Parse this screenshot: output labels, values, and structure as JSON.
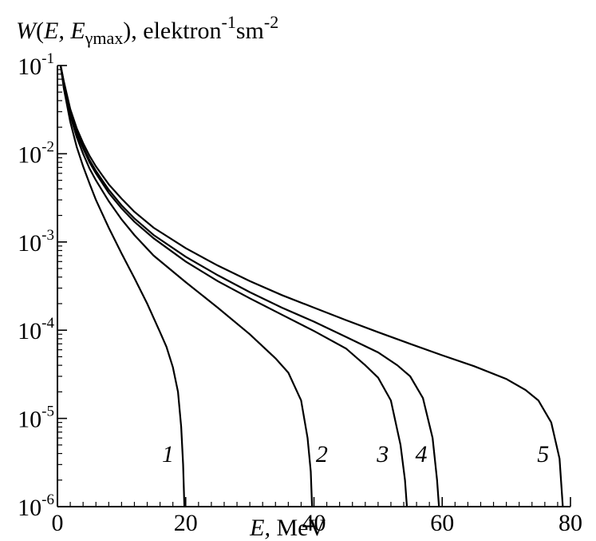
{
  "chart_data": {
    "type": "line",
    "title": "",
    "ylabel": {
      "parts": [
        {
          "text": "W",
          "style": "italic"
        },
        {
          "text": "(",
          "style": "normal"
        },
        {
          "text": "E,",
          "style": "italic"
        },
        {
          "text": " E",
          "style": "italic"
        },
        {
          "text": "γmax",
          "style": "sub"
        },
        {
          "text": "), elektron",
          "style": "normal"
        },
        {
          "text": "-1",
          "style": "sup"
        },
        {
          "text": "sm",
          "style": "normal"
        },
        {
          "text": "-2",
          "style": "sup"
        }
      ]
    },
    "xlabel": {
      "parts": [
        {
          "text": "E,",
          "style": "italic"
        },
        {
          "text": " MeV",
          "style": "normal"
        }
      ]
    },
    "xlim": [
      0,
      80
    ],
    "ylim": [
      1e-06,
      0.1
    ],
    "yscale": "log",
    "x_ticks": [
      0,
      20,
      40,
      60,
      80
    ],
    "x_tick_labels": [
      "0",
      "20",
      "40",
      "60",
      "80"
    ],
    "x_minor_step": 2,
    "y_ticks": [
      1e-06,
      1e-05,
      0.0001,
      0.001,
      0.01,
      0.1
    ],
    "y_tick_labels": [
      {
        "base": "10",
        "exp": "-6"
      },
      {
        "base": "10",
        "exp": "-5"
      },
      {
        "base": "10",
        "exp": "-4"
      },
      {
        "base": "10",
        "exp": "-3"
      },
      {
        "base": "10",
        "exp": "-2"
      },
      {
        "base": "10",
        "exp": "-1"
      }
    ],
    "grid": false,
    "legend": "none",
    "series": [
      {
        "label": "1",
        "label_at": [
          16.3,
          3.2e-06
        ],
        "points": [
          [
            0.5,
            0.1
          ],
          [
            1,
            0.055
          ],
          [
            2,
            0.023
          ],
          [
            3,
            0.012
          ],
          [
            4,
            0.0072
          ],
          [
            5,
            0.0046
          ],
          [
            6,
            0.003
          ],
          [
            8,
            0.00145
          ],
          [
            10,
            0.00074
          ],
          [
            12,
            0.00039
          ],
          [
            14,
            0.0002
          ],
          [
            16,
            9.5e-05
          ],
          [
            17,
            6.5e-05
          ],
          [
            18,
            3.8e-05
          ],
          [
            18.8,
            2e-05
          ],
          [
            19.3,
            8e-06
          ],
          [
            19.6,
            3e-06
          ],
          [
            19.8,
            1e-06
          ]
        ]
      },
      {
        "label": "2",
        "label_at": [
          40.3,
          3.2e-06
        ],
        "points": [
          [
            0.5,
            0.1
          ],
          [
            1,
            0.06
          ],
          [
            2,
            0.027
          ],
          [
            3,
            0.0155
          ],
          [
            4,
            0.01
          ],
          [
            5,
            0.0068
          ],
          [
            6,
            0.005
          ],
          [
            8,
            0.0029
          ],
          [
            10,
            0.0018
          ],
          [
            12,
            0.0012
          ],
          [
            15,
            0.0007
          ],
          [
            20,
            0.00035
          ],
          [
            25,
            0.00018
          ],
          [
            30,
            9e-05
          ],
          [
            34,
            4.8e-05
          ],
          [
            36,
            3.3e-05
          ],
          [
            38,
            1.6e-05
          ],
          [
            39,
            6e-06
          ],
          [
            39.5,
            2.5e-06
          ],
          [
            39.7,
            1e-06
          ]
        ]
      },
      {
        "label": "3",
        "label_at": [
          49.8,
          3.2e-06
        ],
        "points": [
          [
            0.5,
            0.1
          ],
          [
            1,
            0.063
          ],
          [
            2,
            0.029
          ],
          [
            3,
            0.017
          ],
          [
            4,
            0.0115
          ],
          [
            5,
            0.008
          ],
          [
            6,
            0.006
          ],
          [
            8,
            0.0036
          ],
          [
            10,
            0.0024
          ],
          [
            12,
            0.0017
          ],
          [
            15,
            0.0011
          ],
          [
            20,
            0.0006
          ],
          [
            25,
            0.00036
          ],
          [
            30,
            0.00023
          ],
          [
            35,
            0.00015
          ],
          [
            40,
            9.8e-05
          ],
          [
            45,
            6.2e-05
          ],
          [
            48,
            4e-05
          ],
          [
            50,
            2.9e-05
          ],
          [
            52,
            1.6e-05
          ],
          [
            53.5,
            5e-06
          ],
          [
            54.2,
            2e-06
          ],
          [
            54.5,
            1e-06
          ]
        ]
      },
      {
        "label": "4",
        "label_at": [
          55.8,
          3.2e-06
        ],
        "points": [
          [
            0.5,
            0.1
          ],
          [
            1,
            0.064
          ],
          [
            2,
            0.03
          ],
          [
            3,
            0.018
          ],
          [
            4,
            0.012
          ],
          [
            5,
            0.0085
          ],
          [
            6,
            0.0064
          ],
          [
            8,
            0.0039
          ],
          [
            10,
            0.0026
          ],
          [
            12,
            0.00185
          ],
          [
            15,
            0.0012
          ],
          [
            20,
            0.00068
          ],
          [
            25,
            0.00042
          ],
          [
            30,
            0.00027
          ],
          [
            35,
            0.00018
          ],
          [
            40,
            0.000125
          ],
          [
            45,
            8.4e-05
          ],
          [
            50,
            5.6e-05
          ],
          [
            53,
            4e-05
          ],
          [
            55,
            3e-05
          ],
          [
            57,
            1.7e-05
          ],
          [
            58.5,
            6e-06
          ],
          [
            59.2,
            2e-06
          ],
          [
            59.5,
            1e-06
          ]
        ]
      },
      {
        "label": "5",
        "label_at": [
          74.8,
          3.2e-06
        ],
        "points": [
          [
            0.5,
            0.1
          ],
          [
            1,
            0.066
          ],
          [
            2,
            0.032
          ],
          [
            3,
            0.0195
          ],
          [
            4,
            0.0132
          ],
          [
            5,
            0.0095
          ],
          [
            6,
            0.0072
          ],
          [
            8,
            0.0045
          ],
          [
            10,
            0.0031
          ],
          [
            12,
            0.0022
          ],
          [
            15,
            0.00145
          ],
          [
            20,
            0.00085
          ],
          [
            25,
            0.00054
          ],
          [
            30,
            0.00036
          ],
          [
            35,
            0.00025
          ],
          [
            40,
            0.00018
          ],
          [
            45,
            0.00013
          ],
          [
            50,
            9.5e-05
          ],
          [
            55,
            7e-05
          ],
          [
            60,
            5.2e-05
          ],
          [
            65,
            3.9e-05
          ],
          [
            70,
            2.8e-05
          ],
          [
            73,
            2.1e-05
          ],
          [
            75,
            1.6e-05
          ],
          [
            77,
            9e-06
          ],
          [
            78.3,
            3.5e-06
          ],
          [
            78.8,
            1e-06
          ]
        ]
      }
    ]
  }
}
